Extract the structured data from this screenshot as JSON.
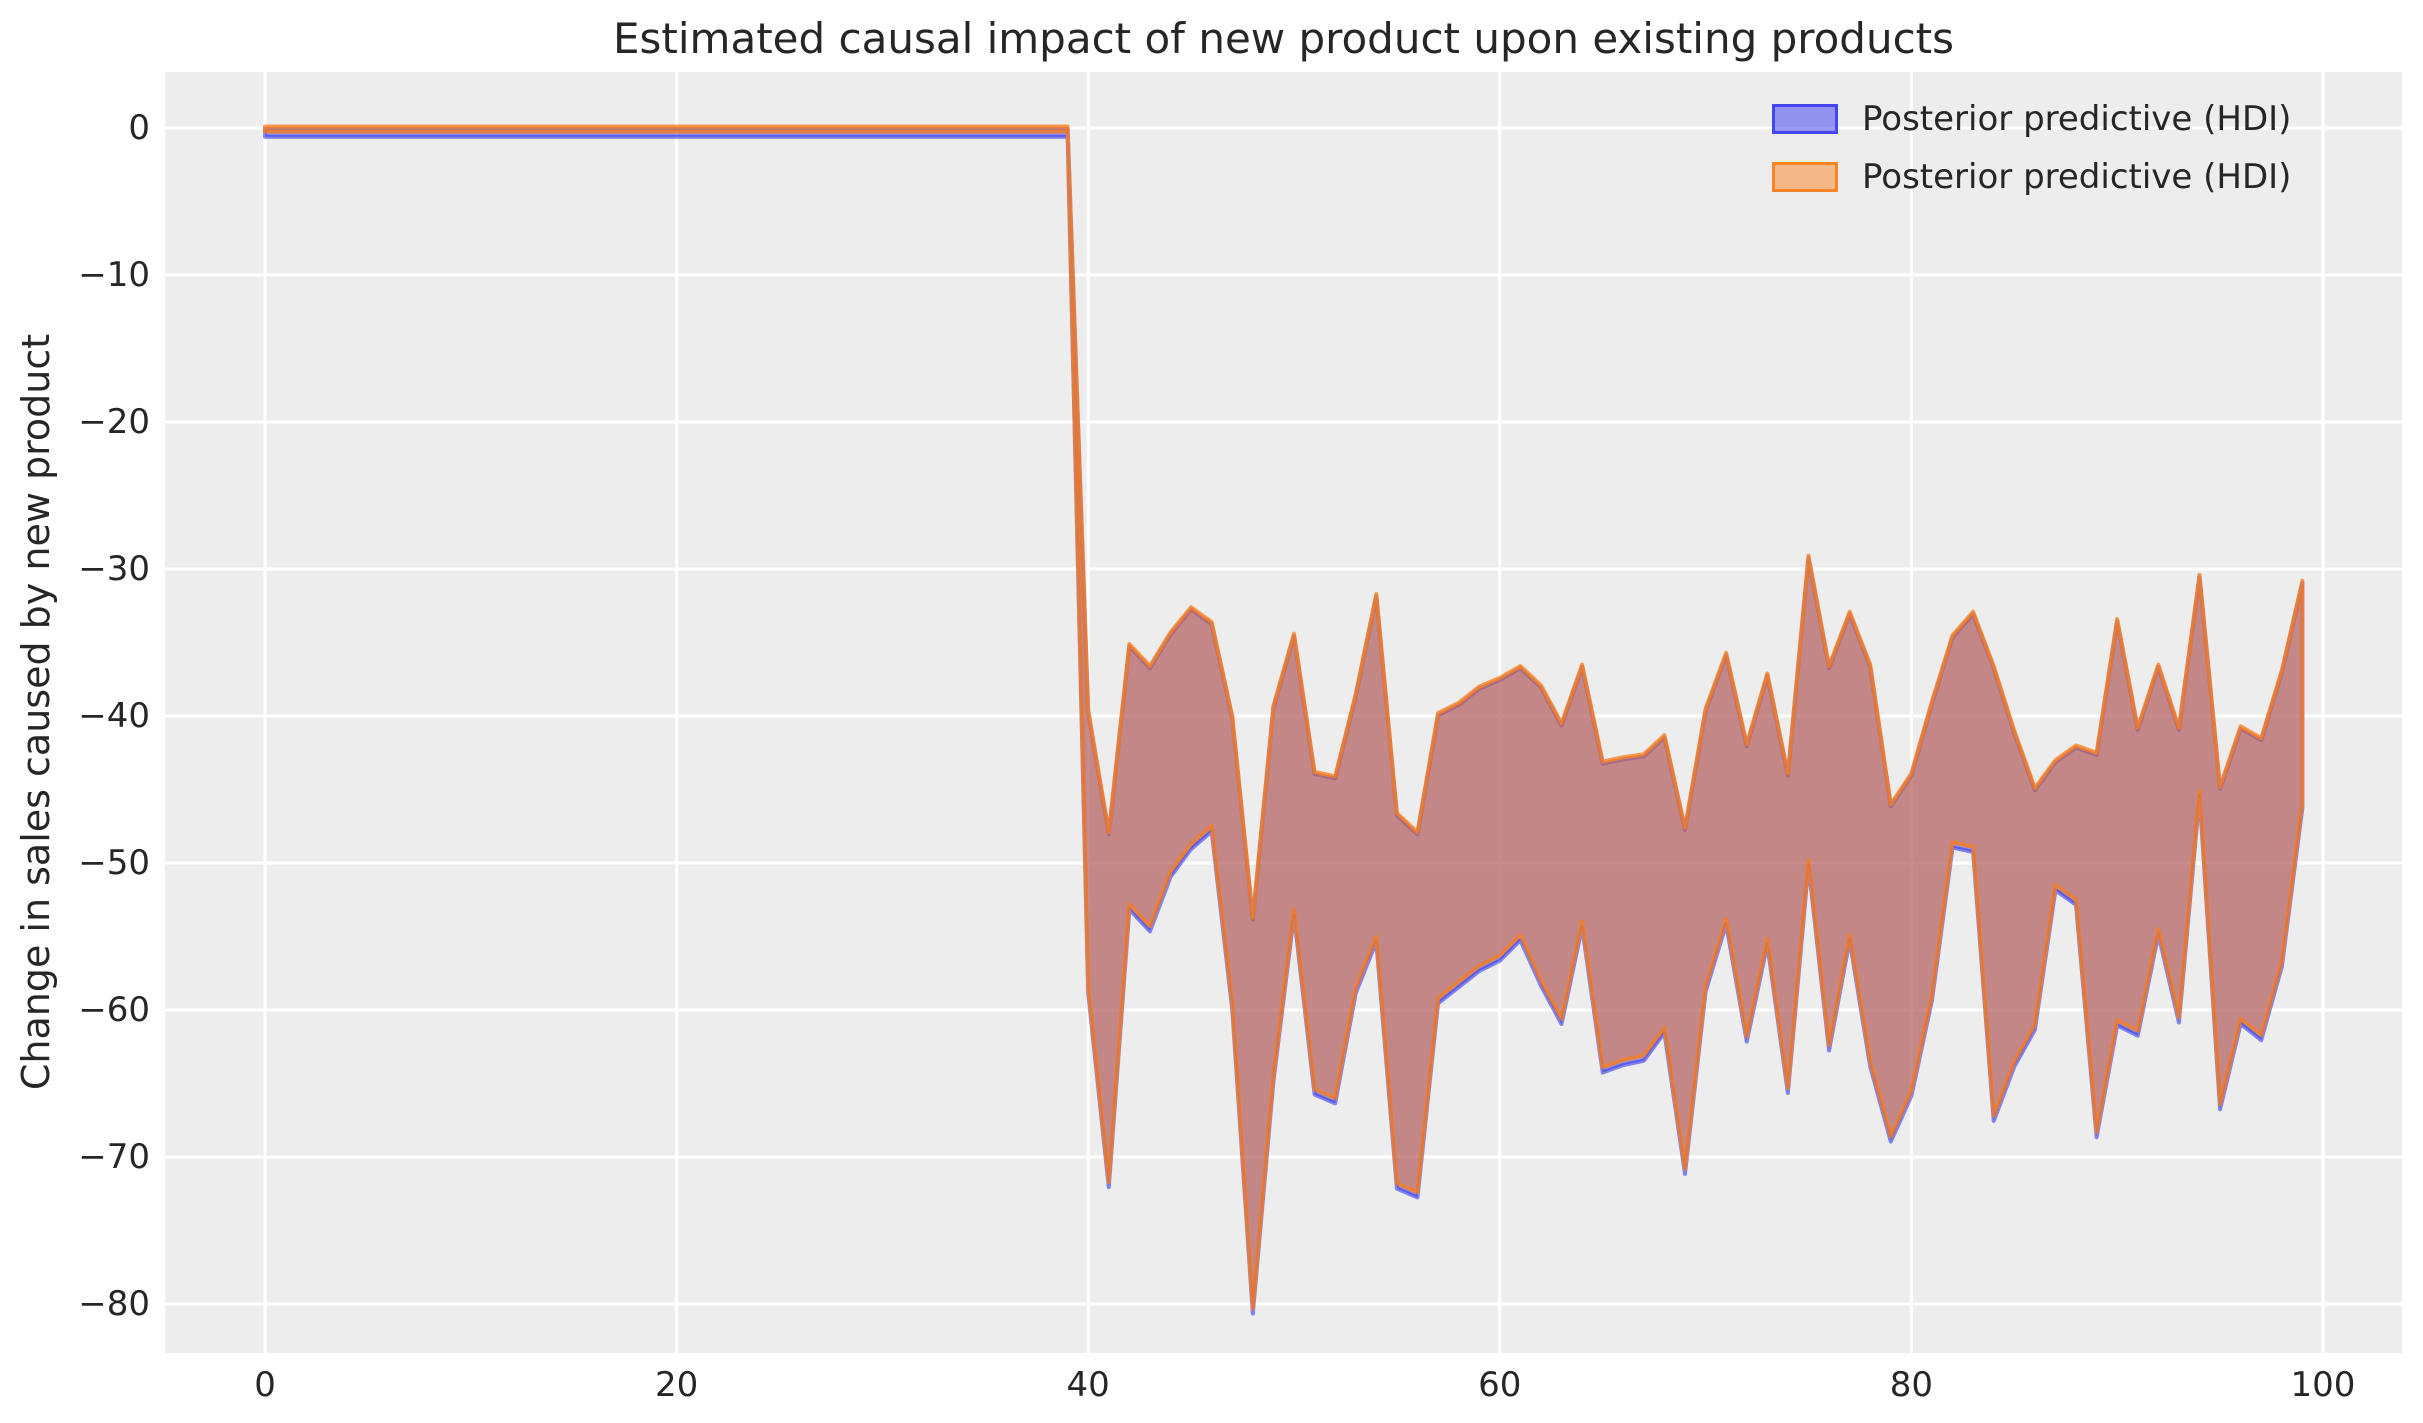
{
  "title": "Estimated causal impact of new product upon existing products",
  "ylabel": "Change in sales caused by new product",
  "legend": {
    "items": [
      {
        "label": "Posterior predictive (HDI)",
        "color": "#2a2eec"
      },
      {
        "label": "Posterior predictive (HDI)",
        "color": "#fa7c17"
      }
    ]
  },
  "colors": {
    "axes_background": "#ededed",
    "grid": "#ffffff",
    "text": "#262626",
    "band_blue": "#2a2eec",
    "band_orange": "#fa7c17",
    "fill_alpha": 0.48,
    "blue_stroke_alpha": 0.55,
    "orange_stroke_alpha": 0.75
  },
  "chart_data": {
    "type": "area",
    "title": "Estimated causal impact of new product upon existing products",
    "xlabel": "",
    "ylabel": "Change in sales caused by new product",
    "legend_position": "upper right",
    "grid": true,
    "xlim": [
      -4.86,
      103.84
    ],
    "ylim": [
      -83.33,
      3.81
    ],
    "x_ticks": [
      0,
      20,
      40,
      60,
      80,
      100
    ],
    "x_tick_labels": [
      "0",
      "20",
      "40",
      "60",
      "80",
      "100"
    ],
    "y_ticks": [
      0,
      -10,
      -20,
      -30,
      -40,
      -50,
      -60,
      -70,
      -80
    ],
    "y_tick_labels": [
      "0",
      "−10",
      "−20",
      "−30",
      "−40",
      "−50",
      "−60",
      "−70",
      "−80"
    ],
    "series": [
      {
        "name": "Posterior predictive (HDI)",
        "x": [
          0,
          1,
          2,
          3,
          4,
          5,
          6,
          7,
          8,
          9,
          10,
          11,
          12,
          13,
          14,
          15,
          16,
          17,
          18,
          19,
          20,
          21,
          22,
          23,
          24,
          25,
          26,
          27,
          28,
          29,
          30,
          31,
          32,
          33,
          34,
          35,
          36,
          37,
          38,
          39,
          40,
          41,
          42,
          43,
          44,
          45,
          46,
          47,
          48,
          49,
          50,
          51,
          52,
          53,
          54,
          55,
          56,
          57,
          58,
          59,
          60,
          61,
          62,
          63,
          64,
          65,
          66,
          67,
          68,
          69,
          70,
          71,
          72,
          73,
          74,
          75,
          76,
          77,
          78,
          79,
          80,
          81,
          82,
          83,
          84,
          85,
          86,
          87,
          88,
          89,
          90,
          91,
          92,
          93,
          94,
          95,
          96,
          97,
          98,
          99
        ],
        "upper": [
          0.1,
          0.1,
          0.1,
          0.1,
          0.1,
          0.1,
          0.1,
          0.1,
          0.1,
          0.1,
          0.1,
          0.1,
          0.1,
          0.1,
          0.1,
          0.1,
          0.1,
          0.1,
          0.1,
          0.1,
          0.1,
          0.1,
          0.1,
          0.1,
          0.1,
          0.1,
          0.1,
          0.1,
          0.1,
          0.1,
          0.1,
          0.1,
          0.1,
          0.1,
          0.1,
          0.1,
          0.1,
          0.1,
          0.1,
          0.1,
          -39.6,
          -47.9,
          -35.1,
          -36.6,
          -34.3,
          -32.6,
          -33.6,
          -40.0,
          -53.7,
          -39.3,
          -34.4,
          -43.8,
          -44.1,
          -38.5,
          -31.7,
          -46.6,
          -47.9,
          -39.8,
          -39.1,
          -38.0,
          -37.4,
          -36.6,
          -37.9,
          -40.5,
          -36.5,
          -43.1,
          -42.8,
          -42.6,
          -41.3,
          -47.6,
          -39.5,
          -35.7,
          -41.9,
          -37.1,
          -43.9,
          -29.1,
          -36.6,
          -32.9,
          -36.5,
          -46.0,
          -43.9,
          -39.0,
          -34.5,
          -32.9,
          -36.6,
          -41.0,
          -44.9,
          -43.0,
          -42.0,
          -42.5,
          -33.4,
          -40.8,
          -36.5,
          -40.8,
          -30.4,
          -44.8,
          -40.7,
          -41.5,
          -36.9,
          -30.8
        ],
        "lower": [
          -0.25,
          -0.25,
          -0.25,
          -0.25,
          -0.25,
          -0.25,
          -0.25,
          -0.25,
          -0.25,
          -0.25,
          -0.25,
          -0.25,
          -0.25,
          -0.25,
          -0.25,
          -0.25,
          -0.25,
          -0.25,
          -0.25,
          -0.25,
          -0.25,
          -0.25,
          -0.25,
          -0.25,
          -0.25,
          -0.25,
          -0.25,
          -0.25,
          -0.25,
          -0.25,
          -0.25,
          -0.25,
          -0.25,
          -0.25,
          -0.25,
          -0.25,
          -0.25,
          -0.25,
          -0.25,
          -0.25,
          -58.5,
          -71.7,
          -52.8,
          -54.3,
          -50.6,
          -48.7,
          -47.5,
          -59.6,
          -80.3,
          -64.5,
          -53.2,
          -65.4,
          -66.0,
          -58.5,
          -55.0,
          -71.8,
          -72.4,
          -59.2,
          -58.1,
          -57.0,
          -56.3,
          -54.9,
          -58.0,
          -60.6,
          -54.0,
          -63.9,
          -63.4,
          -63.1,
          -61.2,
          -70.8,
          -58.4,
          -53.8,
          -61.8,
          -55.2,
          -65.3,
          -49.8,
          -62.4,
          -54.9,
          -63.5,
          -68.6,
          -65.5,
          -59.0,
          -48.6,
          -48.9,
          -67.2,
          -63.5,
          -61.0,
          -51.5,
          -52.5,
          -68.3,
          -60.7,
          -61.4,
          -54.5,
          -60.5,
          -45.1,
          -66.4,
          -60.6,
          -61.7,
          -56.7,
          -45.9
        ]
      },
      {
        "name": "Posterior predictive (HDI)",
        "note": "second band drawn beneath, nearly identical, offset slightly lower",
        "upper_offset": -0.15,
        "lower_offset": -0.35
      }
    ]
  }
}
